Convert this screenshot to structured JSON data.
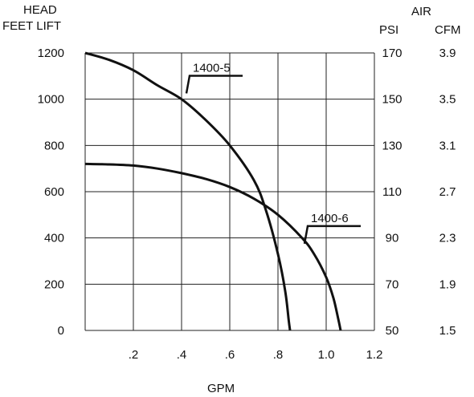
{
  "chart_data": {
    "type": "line",
    "xlabel": "GPM",
    "ylabel_lines": [
      "HEAD",
      "FEET LIFT"
    ],
    "right_axis_title": "AIR",
    "right_axes": [
      {
        "label": "PSI",
        "ticks": [
          "170",
          "150",
          "130",
          "110",
          "90",
          "70",
          "50"
        ]
      },
      {
        "label": "CFM",
        "ticks": [
          "3.9",
          "3.5",
          "3.1",
          "2.7",
          "2.3",
          "1.9",
          "1.5"
        ]
      }
    ],
    "xlim": [
      0,
      1.2
    ],
    "ylim": [
      0,
      1200
    ],
    "x_ticks": [
      {
        "value": 0.2,
        "label": ".2"
      },
      {
        "value": 0.4,
        "label": ".4"
      },
      {
        "value": 0.6,
        "label": ".6"
      },
      {
        "value": 0.8,
        "label": ".8"
      },
      {
        "value": 1.0,
        "label": "1.0"
      },
      {
        "value": 1.2,
        "label": "1.2"
      }
    ],
    "y_ticks": [
      {
        "value": 0,
        "label": "0"
      },
      {
        "value": 200,
        "label": "200"
      },
      {
        "value": 400,
        "label": "400"
      },
      {
        "value": 600,
        "label": "600"
      },
      {
        "value": 800,
        "label": "800"
      },
      {
        "value": 1000,
        "label": "1000"
      },
      {
        "value": 1200,
        "label": "1200"
      }
    ],
    "grid": true,
    "series": [
      {
        "name": "1400-5",
        "x": [
          0.0,
          0.1,
          0.2,
          0.3,
          0.4,
          0.5,
          0.6,
          0.7,
          0.75,
          0.8,
          0.83,
          0.845,
          0.85
        ],
        "y": [
          1200,
          1170,
          1125,
          1060,
          1000,
          910,
          800,
          650,
          520,
          330,
          170,
          40,
          0
        ],
        "callout_x": 0.42,
        "callout_y": 1025
      },
      {
        "name": "1400-6",
        "x": [
          0.0,
          0.1,
          0.2,
          0.3,
          0.4,
          0.5,
          0.6,
          0.7,
          0.8,
          0.9,
          0.95,
          1.0,
          1.03,
          1.05,
          1.06
        ],
        "y": [
          720,
          718,
          713,
          700,
          680,
          655,
          620,
          570,
          500,
          400,
          330,
          230,
          140,
          50,
          0
        ],
        "callout_x": 0.91,
        "callout_y": 375
      }
    ]
  }
}
